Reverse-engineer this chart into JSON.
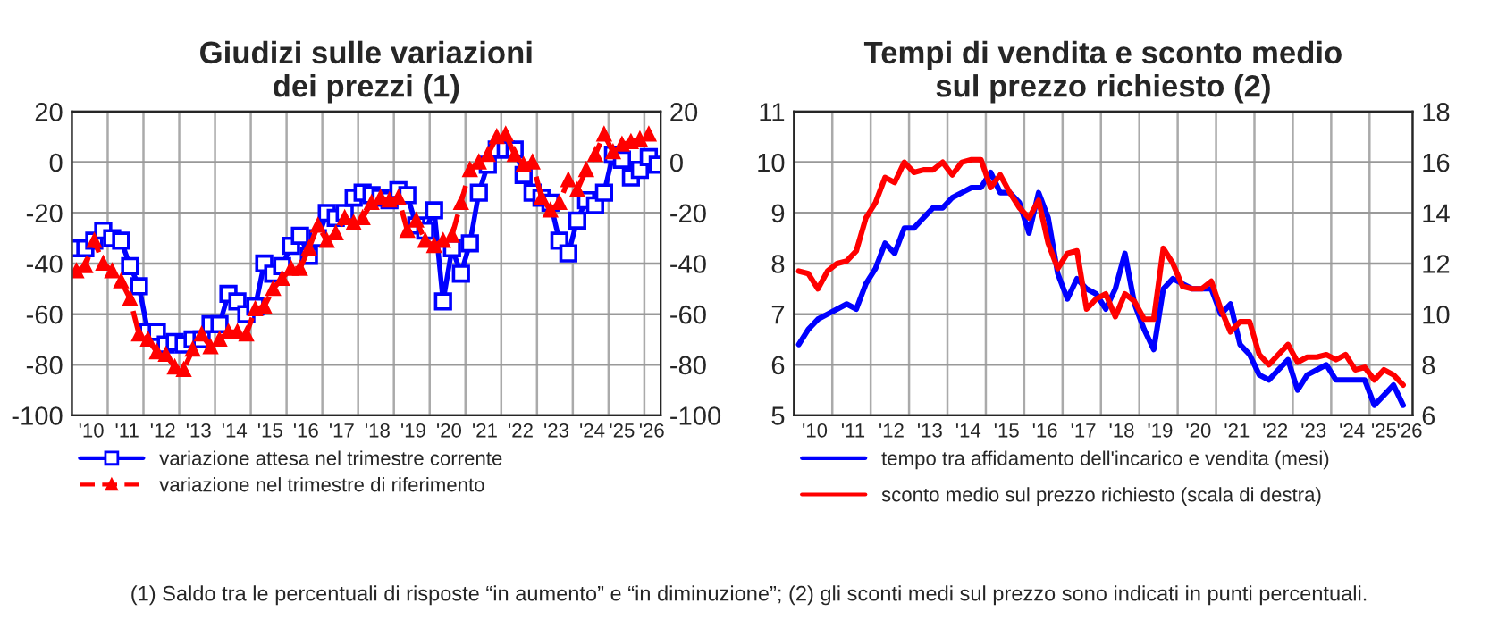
{
  "chart_data": [
    {
      "type": "line",
      "title": "Giudizi sulle variazioni\ndei prezzi (1)",
      "xlim": [
        "2010-01-01",
        "2026-06-15"
      ],
      "xticks": [
        {
          "value": "2010-07",
          "label": "'10"
        },
        {
          "value": "2011-07",
          "label": "'11"
        },
        {
          "value": "2012-07",
          "label": "'12"
        },
        {
          "value": "2013-07",
          "label": "'13"
        },
        {
          "value": "2014-07",
          "label": "'14"
        },
        {
          "value": "2015-07",
          "label": "'15"
        },
        {
          "value": "2016-07",
          "label": "'16"
        },
        {
          "value": "2017-07",
          "label": "'17"
        },
        {
          "value": "2018-07",
          "label": "'18"
        },
        {
          "value": "2019-07",
          "label": "'19"
        },
        {
          "value": "2020-07",
          "label": "'20"
        },
        {
          "value": "2021-07",
          "label": "'21"
        },
        {
          "value": "2022-07",
          "label": "'22"
        },
        {
          "value": "2023-07",
          "label": "'23"
        },
        {
          "value": "2024-07",
          "label": "'24"
        },
        {
          "value": "2025-05",
          "label": "'25"
        },
        {
          "value": "2026-03",
          "label": "'26"
        },
        {
          "value": "2011-01-01",
          "label": null
        },
        {
          "value": "2012-01-01",
          "label": null
        },
        {
          "value": "2013-01-01",
          "label": null
        },
        {
          "value": "2014-01-01",
          "label": null
        },
        {
          "value": "2015-01-01",
          "label": null
        },
        {
          "value": "2016-01-01",
          "label": null
        },
        {
          "value": "2017-01-01",
          "label": null
        },
        {
          "value": "2018-01-01",
          "label": null
        },
        {
          "value": "2019-01-01",
          "label": null
        },
        {
          "value": "2020-01-01",
          "label": null
        },
        {
          "value": "2021-01-01",
          "label": null
        },
        {
          "value": "2022-01-01",
          "label": null
        },
        {
          "value": "2023-01-01",
          "label": null
        },
        {
          "value": "2024-01-01",
          "label": null
        },
        {
          "value": "2025-01-01",
          "label": null
        },
        {
          "value": "2026-01-01",
          "label": null
        }
      ],
      "ylim": [
        -100,
        20
      ],
      "yticks": [
        -100,
        -80,
        -60,
        -40,
        -20,
        0,
        20
      ],
      "y2lim": [
        -100,
        20
      ],
      "y2ticks": [
        -100,
        -80,
        -60,
        -40,
        -20,
        0,
        20
      ],
      "grid": true,
      "legend": "bottom",
      "annotations": [
        "(1) Saldo tra le percentuali di risposte “in aumento” e “in diminuzione”; (2) gli sconti medi sul prezzo sono indicati in punti percentuali."
      ],
      "series": [
        {
          "name": "variazione attesa nel trimestre corrente",
          "color": "#0000ff",
          "marker": "square",
          "line_style": "solid",
          "x": [
            "2010-02",
            "2010-05",
            "2010-08",
            "2010-11",
            "2011-02",
            "2011-05",
            "2011-08",
            "2011-11",
            "2012-02",
            "2012-05",
            "2012-08",
            "2012-11",
            "2013-02",
            "2013-05",
            "2013-08",
            "2013-11",
            "2014-02",
            "2014-05",
            "2014-08",
            "2014-11",
            "2015-02",
            "2015-05",
            "2015-08",
            "2015-11",
            "2016-02",
            "2016-05",
            "2016-08",
            "2016-11",
            "2017-02",
            "2017-05",
            "2017-08",
            "2017-11",
            "2018-02",
            "2018-05",
            "2018-08",
            "2018-11",
            "2019-02",
            "2019-05",
            "2019-08",
            "2019-11",
            "2020-02",
            "2020-05",
            "2020-08",
            "2020-11",
            "2021-02",
            "2021-05",
            "2021-08",
            "2021-11",
            "2022-02",
            "2022-05",
            "2022-08",
            "2022-11",
            "2023-02",
            "2023-05",
            "2023-08",
            "2023-11",
            "2024-02",
            "2024-05",
            "2024-08",
            "2024-11",
            "2025-02",
            "2025-05",
            "2025-08",
            "2025-11",
            "2026-02",
            "2026-05"
          ],
          "values": [
            -34,
            -34,
            -31,
            -27,
            -30,
            -31,
            -41,
            -49,
            -67,
            -67,
            -72,
            -71,
            -72,
            -70,
            -70,
            -64,
            -64,
            -52,
            -55,
            -60,
            -57,
            -40,
            -44,
            -41,
            -33,
            -29,
            -37,
            -30,
            -20,
            -22,
            -20,
            -14,
            -12,
            -13,
            -14,
            -15,
            -11,
            -13,
            -25,
            -27,
            -19,
            -55,
            -34,
            -44,
            -32,
            -12,
            -1,
            5,
            5,
            5,
            -5,
            -12,
            -14,
            -16,
            -31,
            -36,
            -23,
            -15,
            -17,
            -12,
            3,
            1,
            -6,
            -3,
            2,
            -1
          ]
        },
        {
          "name": "variazione nel trimestre di riferimento",
          "color": "#ff0000",
          "marker": "triangle",
          "line_style": "dashed",
          "x": [
            "2010-02",
            "2010-05",
            "2010-08",
            "2010-11",
            "2011-02",
            "2011-05",
            "2011-08",
            "2011-11",
            "2012-02",
            "2012-05",
            "2012-08",
            "2012-11",
            "2013-02",
            "2013-05",
            "2013-08",
            "2013-11",
            "2014-02",
            "2014-05",
            "2014-08",
            "2014-11",
            "2015-02",
            "2015-05",
            "2015-08",
            "2015-11",
            "2016-02",
            "2016-05",
            "2016-08",
            "2016-11",
            "2017-02",
            "2017-05",
            "2017-08",
            "2017-11",
            "2018-02",
            "2018-05",
            "2018-08",
            "2018-11",
            "2019-02",
            "2019-05",
            "2019-08",
            "2019-11",
            "2020-02",
            "2020-05",
            "2020-08",
            "2020-11",
            "2021-02",
            "2021-05",
            "2021-08",
            "2021-11",
            "2022-02",
            "2022-05",
            "2022-08",
            "2022-11",
            "2023-02",
            "2023-05",
            "2023-08",
            "2023-11",
            "2024-02",
            "2024-05",
            "2024-08",
            "2024-11",
            "2025-02",
            "2025-05",
            "2025-08",
            "2025-11",
            "2026-02"
          ],
          "values": [
            -43,
            -41,
            -31,
            -40,
            -43,
            -47,
            -54,
            -68,
            -70,
            -75,
            -76,
            -81,
            -82,
            -74,
            -68,
            -73,
            -70,
            -67,
            -67,
            -68,
            -58,
            -57,
            -50,
            -46,
            -42,
            -42,
            -34,
            -25,
            -31,
            -28,
            -22,
            -24,
            -22,
            -16,
            -14,
            -15,
            -14,
            -27,
            -23,
            -31,
            -33,
            -31,
            -29,
            -16,
            -3,
            0,
            3,
            10,
            11,
            3,
            -1,
            0,
            -14,
            -19,
            -16,
            -7,
            -11,
            -3,
            3,
            11,
            4,
            7,
            8,
            9,
            11
          ]
        }
      ]
    },
    {
      "type": "line",
      "title": "Tempi di vendita e sconto medio\nsul prezzo richiesto (2)",
      "xlim": [
        "2010-01-01",
        "2026-02-15"
      ],
      "xticks": [
        {
          "value": "2010-07",
          "label": "'10"
        },
        {
          "value": "2011-07",
          "label": "'11"
        },
        {
          "value": "2012-07",
          "label": "'12"
        },
        {
          "value": "2013-07",
          "label": "'13"
        },
        {
          "value": "2014-07",
          "label": "'14"
        },
        {
          "value": "2015-07",
          "label": "'15"
        },
        {
          "value": "2016-07",
          "label": "'16"
        },
        {
          "value": "2017-07",
          "label": "'17"
        },
        {
          "value": "2018-07",
          "label": "'18"
        },
        {
          "value": "2019-07",
          "label": "'19"
        },
        {
          "value": "2020-07",
          "label": "'20"
        },
        {
          "value": "2021-07",
          "label": "'21"
        },
        {
          "value": "2022-07",
          "label": "'22"
        },
        {
          "value": "2023-07",
          "label": "'23"
        },
        {
          "value": "2024-07",
          "label": "'24"
        },
        {
          "value": "2025-05",
          "label": "'25"
        },
        {
          "value": "2026-01",
          "label": "'26"
        },
        {
          "value": "2011-01-01",
          "label": null
        },
        {
          "value": "2012-01-01",
          "label": null
        },
        {
          "value": "2013-01-01",
          "label": null
        },
        {
          "value": "2014-01-01",
          "label": null
        },
        {
          "value": "2015-01-01",
          "label": null
        },
        {
          "value": "2016-01-01",
          "label": null
        },
        {
          "value": "2017-01-01",
          "label": null
        },
        {
          "value": "2018-01-01",
          "label": null
        },
        {
          "value": "2019-01-01",
          "label": null
        },
        {
          "value": "2020-01-01",
          "label": null
        },
        {
          "value": "2021-01-01",
          "label": null
        },
        {
          "value": "2022-01-01",
          "label": null
        },
        {
          "value": "2023-01-01",
          "label": null
        },
        {
          "value": "2024-01-01",
          "label": null
        },
        {
          "value": "2025-01-01",
          "label": null
        }
      ],
      "ylim": [
        5,
        11
      ],
      "yticks": [
        5,
        6,
        7,
        8,
        9,
        10,
        11
      ],
      "y2lim": [
        6,
        18
      ],
      "y2ticks": [
        6,
        8,
        10,
        12,
        14,
        16,
        18
      ],
      "grid": true,
      "legend": "bottom",
      "series": [
        {
          "name": "tempo tra affidamento dell'incarico e vendita (mesi)",
          "color": "#0000ff",
          "line_style": "solid",
          "x": [
            "2010-02",
            "2010-05",
            "2010-08",
            "2010-11",
            "2011-02",
            "2011-05",
            "2011-08",
            "2011-11",
            "2012-02",
            "2012-05",
            "2012-08",
            "2012-11",
            "2013-02",
            "2013-05",
            "2013-08",
            "2013-11",
            "2014-02",
            "2014-05",
            "2014-08",
            "2014-11",
            "2015-02",
            "2015-05",
            "2015-08",
            "2015-11",
            "2016-02",
            "2016-05",
            "2016-08",
            "2016-11",
            "2017-02",
            "2017-05",
            "2017-08",
            "2017-11",
            "2018-02",
            "2018-05",
            "2018-08",
            "2018-11",
            "2019-02",
            "2019-05",
            "2019-08",
            "2019-11",
            "2020-02",
            "2020-05",
            "2020-08",
            "2020-11",
            "2021-02",
            "2021-05",
            "2021-08",
            "2021-11",
            "2022-02",
            "2022-05",
            "2022-08",
            "2022-11",
            "2023-02",
            "2023-05",
            "2023-08",
            "2023-11",
            "2024-02",
            "2024-05",
            "2024-08",
            "2024-11",
            "2025-02",
            "2025-05",
            "2025-08",
            "2025-11"
          ],
          "values": [
            6.4,
            6.7,
            6.9,
            7.0,
            7.1,
            7.2,
            7.1,
            7.6,
            7.9,
            8.4,
            8.2,
            8.7,
            8.7,
            8.9,
            9.1,
            9.1,
            9.3,
            9.4,
            9.5,
            9.5,
            9.8,
            9.4,
            9.4,
            9.2,
            8.6,
            9.4,
            8.9,
            7.8,
            7.3,
            7.7,
            7.5,
            7.4,
            7.1,
            7.5,
            8.2,
            7.2,
            6.7,
            6.3,
            7.5,
            7.7,
            7.6,
            7.5,
            7.5,
            7.5,
            7.0,
            7.2,
            6.4,
            6.2,
            5.8,
            5.7,
            5.9,
            6.1,
            5.5,
            5.8,
            5.9,
            6.0,
            5.7,
            5.7,
            5.7,
            5.7,
            5.2,
            5.4,
            5.6,
            5.2
          ]
        },
        {
          "name": "sconto medio sul prezzo richiesto (scala di destra)",
          "color": "#ff0000",
          "line_style": "solid",
          "axis": "y2",
          "x": [
            "2010-02",
            "2010-05",
            "2010-08",
            "2010-11",
            "2011-02",
            "2011-05",
            "2011-08",
            "2011-11",
            "2012-02",
            "2012-05",
            "2012-08",
            "2012-11",
            "2013-02",
            "2013-05",
            "2013-08",
            "2013-11",
            "2014-02",
            "2014-05",
            "2014-08",
            "2014-11",
            "2015-02",
            "2015-05",
            "2015-08",
            "2015-11",
            "2016-02",
            "2016-05",
            "2016-08",
            "2016-11",
            "2017-02",
            "2017-05",
            "2017-08",
            "2017-11",
            "2018-02",
            "2018-05",
            "2018-08",
            "2018-11",
            "2019-02",
            "2019-05",
            "2019-08",
            "2019-11",
            "2020-02",
            "2020-05",
            "2020-08",
            "2020-11",
            "2021-02",
            "2021-05",
            "2021-08",
            "2021-11",
            "2022-02",
            "2022-05",
            "2022-08",
            "2022-11",
            "2023-02",
            "2023-05",
            "2023-08",
            "2023-11",
            "2024-02",
            "2024-05",
            "2024-08",
            "2024-11",
            "2025-02",
            "2025-05",
            "2025-08",
            "2025-11"
          ],
          "values": [
            11.7,
            11.6,
            11.0,
            11.7,
            12.0,
            12.1,
            12.5,
            13.8,
            14.4,
            15.4,
            15.2,
            16.0,
            15.6,
            15.7,
            15.7,
            16.0,
            15.5,
            16.0,
            16.1,
            16.1,
            15.0,
            15.5,
            14.8,
            14.2,
            13.8,
            14.5,
            12.8,
            11.8,
            12.4,
            12.5,
            10.2,
            10.6,
            10.8,
            9.9,
            10.8,
            10.5,
            9.8,
            9.8,
            12.6,
            12.0,
            11.1,
            11.0,
            11.0,
            11.3,
            10.2,
            9.3,
            9.7,
            9.7,
            8.4,
            8.0,
            8.4,
            8.8,
            8.1,
            8.3,
            8.3,
            8.4,
            8.2,
            8.4,
            7.8,
            7.9,
            7.4,
            7.8,
            7.6,
            7.2
          ]
        }
      ]
    }
  ]
}
